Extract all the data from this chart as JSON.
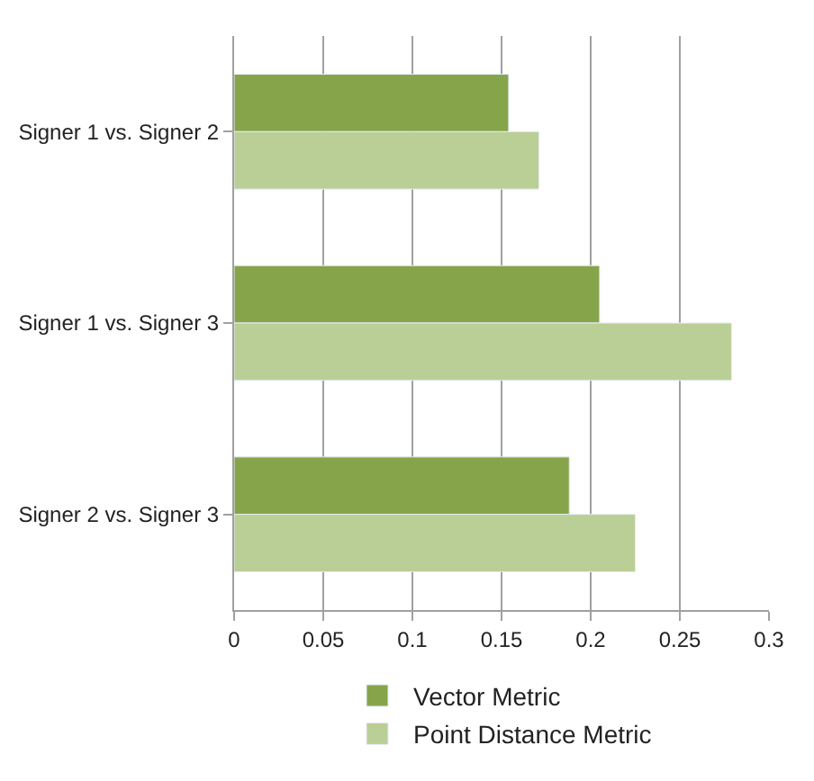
{
  "chart_data": {
    "type": "bar",
    "orientation": "horizontal",
    "categories": [
      "Signer 1 vs. Signer 2",
      "Signer 1 vs. Signer 3",
      "Signer 2 vs. Signer 3"
    ],
    "series": [
      {
        "name": "Vector Metric",
        "color": "#86a44a",
        "values": [
          0.154,
          0.205,
          0.188
        ]
      },
      {
        "name": "Point Distance Metric",
        "color": "#bacf95",
        "values": [
          0.171,
          0.279,
          0.225
        ]
      }
    ],
    "xlim": [
      0,
      0.3
    ],
    "xticks": [
      0,
      0.05,
      0.1,
      0.15,
      0.2,
      0.25,
      0.3
    ],
    "grid": "x",
    "legend": "bottom"
  }
}
